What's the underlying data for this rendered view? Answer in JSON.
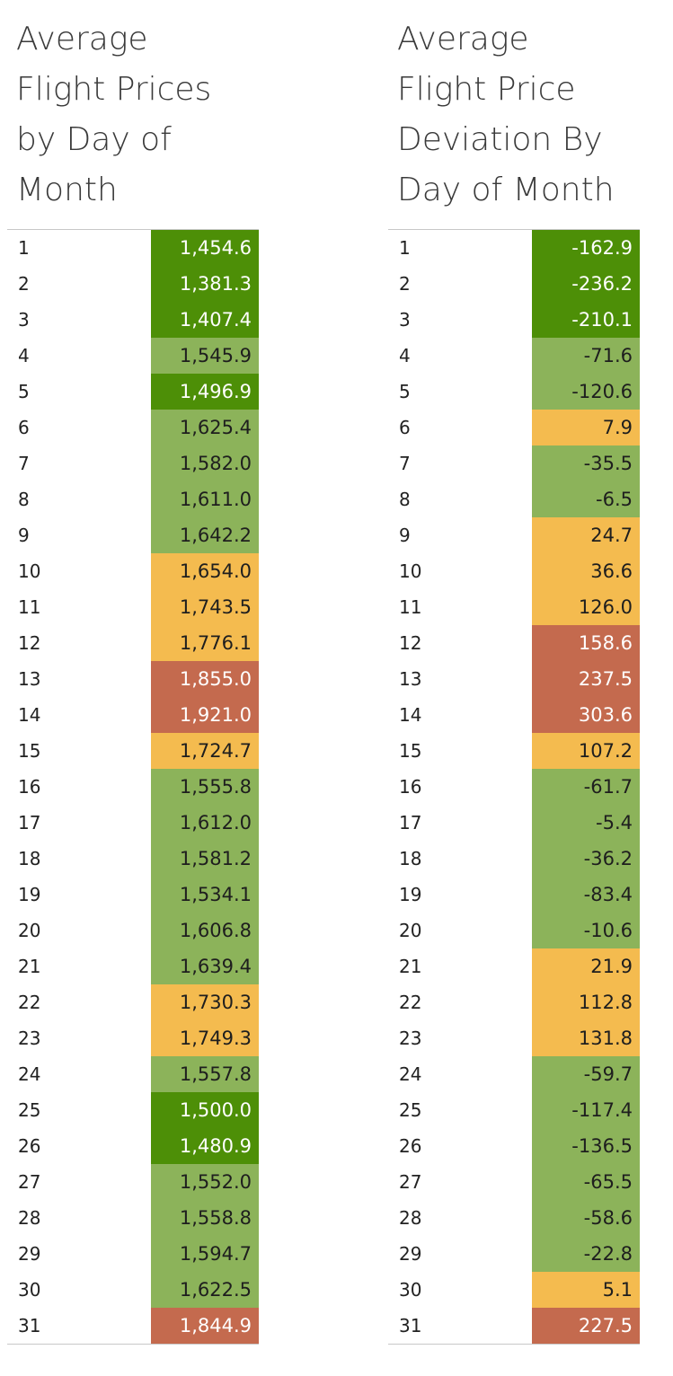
{
  "chart_data": [
    {
      "type": "table",
      "title": "Average Flight Prices by Day of Month",
      "title_lines": [
        "Average",
        "Flight Prices",
        "by Day of",
        "Month"
      ],
      "days": [
        "1",
        "2",
        "3",
        "4",
        "5",
        "6",
        "7",
        "8",
        "9",
        "10",
        "11",
        "12",
        "13",
        "14",
        "15",
        "16",
        "17",
        "18",
        "19",
        "20",
        "21",
        "22",
        "23",
        "24",
        "25",
        "26",
        "27",
        "28",
        "29",
        "30",
        "31"
      ],
      "values": [
        "1,454.6",
        "1,381.3",
        "1,407.4",
        "1,545.9",
        "1,496.9",
        "1,625.4",
        "1,582.0",
        "1,611.0",
        "1,642.2",
        "1,654.0",
        "1,743.5",
        "1,776.1",
        "1,855.0",
        "1,921.0",
        "1,724.7",
        "1,555.8",
        "1,612.0",
        "1,581.2",
        "1,534.1",
        "1,606.8",
        "1,639.4",
        "1,730.3",
        "1,749.3",
        "1,557.8",
        "1,500.0",
        "1,480.9",
        "1,552.0",
        "1,558.8",
        "1,594.7",
        "1,622.5",
        "1,844.9"
      ],
      "value_colors": [
        "#4d8f07",
        "#4d8f07",
        "#4d8f07",
        "#8cb35a",
        "#4d8f07",
        "#8cb35a",
        "#8cb35a",
        "#8cb35a",
        "#8cb35a",
        "#f4bb4f",
        "#f4bb4f",
        "#f4bb4f",
        "#c46a4e",
        "#c46a4e",
        "#f4bb4f",
        "#8cb35a",
        "#8cb35a",
        "#8cb35a",
        "#8cb35a",
        "#8cb35a",
        "#8cb35a",
        "#f4bb4f",
        "#f4bb4f",
        "#8cb35a",
        "#4d8f07",
        "#4d8f07",
        "#8cb35a",
        "#8cb35a",
        "#8cb35a",
        "#8cb35a",
        "#c46a4e"
      ]
    },
    {
      "type": "table",
      "title": "Average Flight Price Deviation By Day of Month",
      "title_lines": [
        "Average",
        "Flight Price",
        "Deviation By",
        "Day of Month"
      ],
      "days": [
        "1",
        "2",
        "3",
        "4",
        "5",
        "6",
        "7",
        "8",
        "9",
        "10",
        "11",
        "12",
        "13",
        "14",
        "15",
        "16",
        "17",
        "18",
        "19",
        "20",
        "21",
        "22",
        "23",
        "24",
        "25",
        "26",
        "27",
        "28",
        "29",
        "30",
        "31"
      ],
      "values": [
        "-162.9",
        "-236.2",
        "-210.1",
        "-71.6",
        "-120.6",
        "7.9",
        "-35.5",
        "-6.5",
        "24.7",
        "36.6",
        "126.0",
        "158.6",
        "237.5",
        "303.6",
        "107.2",
        "-61.7",
        "-5.4",
        "-36.2",
        "-83.4",
        "-10.6",
        "21.9",
        "112.8",
        "131.8",
        "-59.7",
        "-117.4",
        "-136.5",
        "-65.5",
        "-58.6",
        "-22.8",
        "5.1",
        "227.5"
      ],
      "value_colors": [
        "#4d8f07",
        "#4d8f07",
        "#4d8f07",
        "#8cb35a",
        "#8cb35a",
        "#f4bb4f",
        "#8cb35a",
        "#8cb35a",
        "#f4bb4f",
        "#f4bb4f",
        "#f4bb4f",
        "#c46a4e",
        "#c46a4e",
        "#c46a4e",
        "#f4bb4f",
        "#8cb35a",
        "#8cb35a",
        "#8cb35a",
        "#8cb35a",
        "#8cb35a",
        "#f4bb4f",
        "#f4bb4f",
        "#f4bb4f",
        "#8cb35a",
        "#8cb35a",
        "#8cb35a",
        "#8cb35a",
        "#8cb35a",
        "#8cb35a",
        "#f4bb4f",
        "#c46a4e"
      ]
    }
  ],
  "text_colors": {
    "#4d8f07": "#ffffff",
    "#8cb35a": "#1e1e1e",
    "#f4bb4f": "#1e1e1e",
    "#c46a4e": "#ffffff"
  }
}
